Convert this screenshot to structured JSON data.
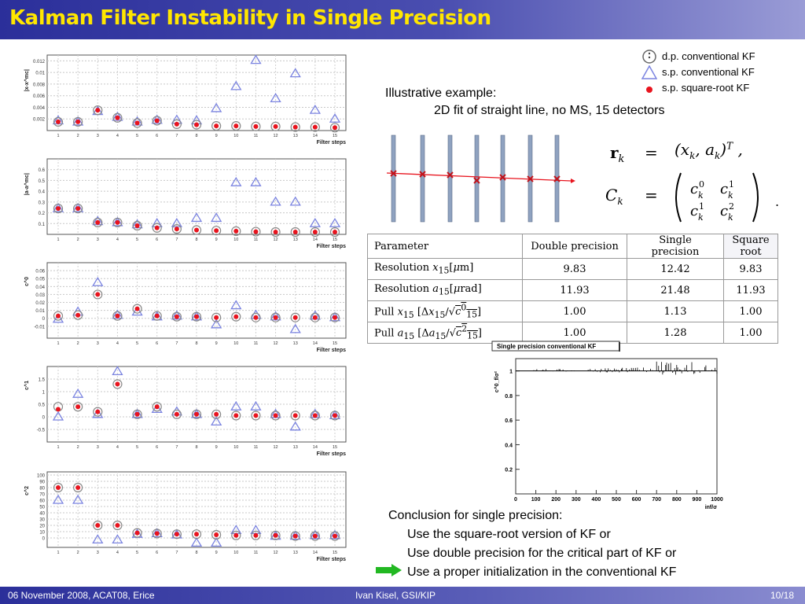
{
  "slide": {
    "title": "Kalman Filter Instability in Single Precision",
    "footer_left": "06 November 2008, ACAT08, Erice",
    "footer_center": "Ivan Kisel, GSI/KIP",
    "footer_right": "10/18"
  },
  "legend": {
    "items": [
      {
        "label": "d.p. conventional KF",
        "marker": "open-circle"
      },
      {
        "label": "s.p. conventional KF",
        "marker": "open-triangle"
      },
      {
        "label": "s.p. square-root KF",
        "marker": "red-dot"
      }
    ]
  },
  "illustration": {
    "heading": "Illustrative example:",
    "subheading": "2D fit of straight line, no MS, 15 detectors"
  },
  "equation": {
    "r_lhs": "r",
    "r_rhs": "(xk, ak)T",
    "c_lhs": "Ck"
  },
  "table": {
    "headers": [
      "Parameter",
      "Double precision",
      "Single precision",
      "Square root"
    ],
    "rows": [
      {
        "param": "Resolution x15[μm]",
        "dp": "9.83",
        "sp": "12.42",
        "sr": "9.83"
      },
      {
        "param": "Resolution a15[μrad]",
        "dp": "11.93",
        "sp": "21.48",
        "sr": "11.93"
      },
      {
        "param": "Pull x15 [Δx15/√c⁰15]",
        "dp": "1.00",
        "sp": "1.13",
        "sr": "1.00"
      },
      {
        "param": "Pull a15 [Δa15/√c²15]",
        "dp": "1.00",
        "sp": "1.28",
        "sr": "1.00"
      }
    ]
  },
  "conclusion": {
    "heading": "Conclusion for single precision:",
    "items": [
      "Use the square-root version of KF or",
      "Use double precision for the critical part of KF or",
      "Use a proper initialization in the conventional KF"
    ]
  },
  "colors": {
    "title_text": "#ffe600",
    "bar_dark": "#2b2f9a",
    "triangle": "#7b84e0",
    "dot": "#e8141e",
    "track_line": "#e8141e",
    "detector": "#8fa2c0",
    "arrow": "#22b822"
  },
  "chart_data": [
    {
      "type": "scatter",
      "ylabel": "|x-x^mc|",
      "xlabel": "Filter steps",
      "x": [
        1,
        2,
        3,
        4,
        5,
        6,
        7,
        8,
        9,
        10,
        11,
        12,
        13,
        14,
        15
      ],
      "ylim": [
        0,
        0.013
      ],
      "yticks": [
        "0.002",
        "0.004",
        "0.006",
        "0.008",
        "0.01",
        "0.012"
      ],
      "series": [
        {
          "name": "d.p. conventional KF",
          "values": [
            0.0015,
            0.0015,
            0.0035,
            0.0022,
            0.0013,
            0.0017,
            0.0011,
            0.001,
            0.0008,
            0.0008,
            0.0007,
            0.0007,
            0.0006,
            0.0006,
            0.0005
          ]
        },
        {
          "name": "s.p. conventional KF",
          "values": [
            0.0017,
            0.0015,
            0.0033,
            0.0023,
            0.0015,
            0.0018,
            0.0018,
            0.0017,
            0.0038,
            0.0076,
            0.0121,
            0.0055,
            0.0098,
            0.0035,
            0.002
          ]
        },
        {
          "name": "s.p. square-root KF",
          "values": [
            0.0015,
            0.0015,
            0.0035,
            0.0022,
            0.0013,
            0.0017,
            0.0011,
            0.001,
            0.0008,
            0.0008,
            0.0007,
            0.0007,
            0.0006,
            0.0006,
            0.0005
          ]
        }
      ]
    },
    {
      "type": "scatter",
      "ylabel": "|a-a^mc|",
      "xlabel": "Filter steps",
      "x": [
        1,
        2,
        3,
        4,
        5,
        6,
        7,
        8,
        9,
        10,
        11,
        12,
        13,
        14,
        15
      ],
      "ylim": [
        0,
        0.7
      ],
      "yticks": [
        "0.1",
        "0.2",
        "0.3",
        "0.4",
        "0.5",
        "0.6"
      ],
      "series": [
        {
          "name": "d.p. conventional KF",
          "values": [
            0.24,
            0.24,
            0.11,
            0.11,
            0.08,
            0.06,
            0.05,
            0.04,
            0.035,
            0.03,
            0.025,
            0.02,
            0.02,
            0.018,
            0.015
          ]
        },
        {
          "name": "s.p. conventional KF",
          "values": [
            0.24,
            0.24,
            0.12,
            0.11,
            0.09,
            0.1,
            0.1,
            0.15,
            0.15,
            0.48,
            0.48,
            0.3,
            0.3,
            0.1,
            0.1
          ]
        },
        {
          "name": "s.p. square-root KF",
          "values": [
            0.24,
            0.24,
            0.11,
            0.11,
            0.08,
            0.06,
            0.05,
            0.04,
            0.035,
            0.03,
            0.025,
            0.02,
            0.02,
            0.018,
            0.015
          ]
        }
      ]
    },
    {
      "type": "scatter",
      "ylabel": "c^0",
      "xlabel": "Filter steps",
      "x": [
        1,
        2,
        3,
        4,
        5,
        6,
        7,
        8,
        9,
        10,
        11,
        12,
        13,
        14,
        15
      ],
      "ylim": [
        -0.025,
        0.07
      ],
      "yticks": [
        "-0.01",
        "0",
        "0.01",
        "0.02",
        "0.03",
        "0.04",
        "0.05",
        "0.06"
      ],
      "series": [
        {
          "name": "d.p. conventional KF",
          "values": [
            0.003,
            0.004,
            0.03,
            0.003,
            0.012,
            0.003,
            0.002,
            0.002,
            0.001,
            0.002,
            0.001,
            0.001,
            0.001,
            0.001,
            0.001
          ]
        },
        {
          "name": "s.p. conventional KF",
          "values": [
            -0.001,
            0.008,
            0.045,
            0.004,
            0.008,
            0.002,
            0.003,
            0.002,
            -0.008,
            0.016,
            0.004,
            0.002,
            -0.014,
            0.003,
            0.001
          ]
        },
        {
          "name": "s.p. square-root KF",
          "values": [
            0.003,
            0.004,
            0.03,
            0.003,
            0.012,
            0.003,
            0.002,
            0.002,
            0.001,
            0.002,
            0.001,
            0.001,
            0.001,
            0.001,
            0.001
          ]
        }
      ]
    },
    {
      "type": "scatter",
      "ylabel": "c^1",
      "xlabel": "Filter steps",
      "x": [
        1,
        2,
        3,
        4,
        5,
        6,
        7,
        8,
        9,
        10,
        11,
        12,
        13,
        14,
        15
      ],
      "ylim": [
        -1.0,
        2.0
      ],
      "yticks": [
        "-0.5",
        "0",
        "0.5",
        "1",
        "1.5"
      ],
      "series": [
        {
          "name": "d.p. conventional KF",
          "values": [
            0.4,
            0.4,
            0.2,
            1.3,
            0.1,
            0.4,
            0.1,
            0.1,
            0.1,
            0.05,
            0.05,
            0.05,
            0.05,
            0.05,
            0.05
          ]
        },
        {
          "name": "s.p. conventional KF",
          "values": [
            0.0,
            0.9,
            0.1,
            1.8,
            0.1,
            0.3,
            0.2,
            0.1,
            -0.2,
            0.4,
            0.4,
            0.1,
            -0.4,
            0.1,
            0.05
          ]
        },
        {
          "name": "s.p. square-root KF",
          "values": [
            0.3,
            0.4,
            0.2,
            1.3,
            0.1,
            0.4,
            0.1,
            0.1,
            0.1,
            0.05,
            0.05,
            0.05,
            0.05,
            0.05,
            0.05
          ]
        }
      ]
    },
    {
      "type": "scatter",
      "ylabel": "c^2",
      "xlabel": "Filter steps",
      "x": [
        1,
        2,
        3,
        4,
        5,
        6,
        7,
        8,
        9,
        10,
        11,
        12,
        13,
        14,
        15
      ],
      "ylim": [
        -15,
        105
      ],
      "yticks": [
        "0",
        "10",
        "20",
        "30",
        "40",
        "50",
        "60",
        "70",
        "80",
        "90",
        "100"
      ],
      "series": [
        {
          "name": "d.p. conventional KF",
          "values": [
            80,
            80,
            20,
            20,
            8,
            7,
            6,
            6,
            5,
            4,
            4,
            4,
            3,
            3,
            3
          ]
        },
        {
          "name": "s.p. conventional KF",
          "values": [
            60,
            60,
            -3,
            -3,
            6,
            7,
            5,
            -8,
            -8,
            12,
            12,
            3,
            3,
            4,
            4
          ]
        },
        {
          "name": "s.p. square-root KF",
          "values": [
            80,
            80,
            20,
            20,
            8,
            7,
            6,
            6,
            5,
            4,
            4,
            4,
            3,
            3,
            3
          ]
        }
      ]
    },
    {
      "type": "line",
      "title": "Single precision conventional KF",
      "ylabel": "c^0_f/σ²",
      "xlabel": "inf/σ",
      "xlim": [
        0,
        1000
      ],
      "ylim": [
        0,
        1.1
      ],
      "xticks": [
        "0",
        "100",
        "200",
        "300",
        "400",
        "500",
        "600",
        "700",
        "800",
        "900",
        "1000"
      ],
      "yticks": [
        "0.2",
        "0.4",
        "0.6",
        "0.8",
        "1"
      ]
    }
  ]
}
